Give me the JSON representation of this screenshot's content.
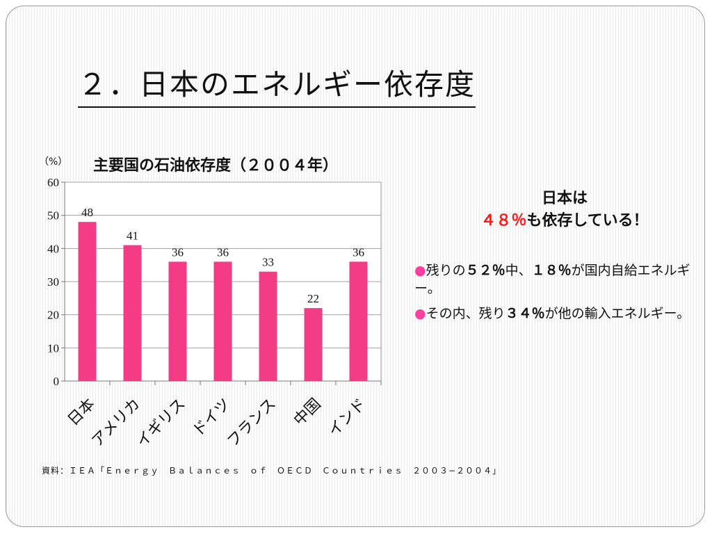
{
  "slide": {
    "title": "２．日本のエネルギー依存度"
  },
  "chart_data": {
    "type": "bar",
    "title": "主要国の石油依存度（２００４年）",
    "unit_label": "（%）",
    "categories": [
      "日本",
      "アメリカ",
      "イギリス",
      "ドイツ",
      "フランス",
      "中国",
      "インド"
    ],
    "values": [
      48,
      41,
      36,
      36,
      33,
      22,
      36
    ],
    "ylim": [
      0,
      60
    ],
    "yticks": [
      0,
      10,
      20,
      30,
      40,
      50,
      60
    ],
    "grid": true,
    "bar_color": "#f33b86"
  },
  "callout": {
    "line1": "日本は",
    "highlight": "４８％",
    "line2_rest": "も依存している！"
  },
  "notes": [
    {
      "pre": "残りの",
      "b1": "５２％",
      "mid": "中、",
      "b2": "１８％",
      "post": "が国内自給エネルギー。"
    },
    {
      "pre": "その内、残り",
      "b1": "３４％",
      "mid": "",
      "b2": "",
      "post": "が他の輸入エネルギー。"
    }
  ],
  "bullet_symbol": "●",
  "source": "資料：ＩＥＡ「Ｅｎｅｒｇｙ　Ｂａｌａｎｃｅｓ　ｏｆ　ＯＥＣＤ　Ｃｏｕｎｔｒｉｅｓ　２００３−２００４」"
}
